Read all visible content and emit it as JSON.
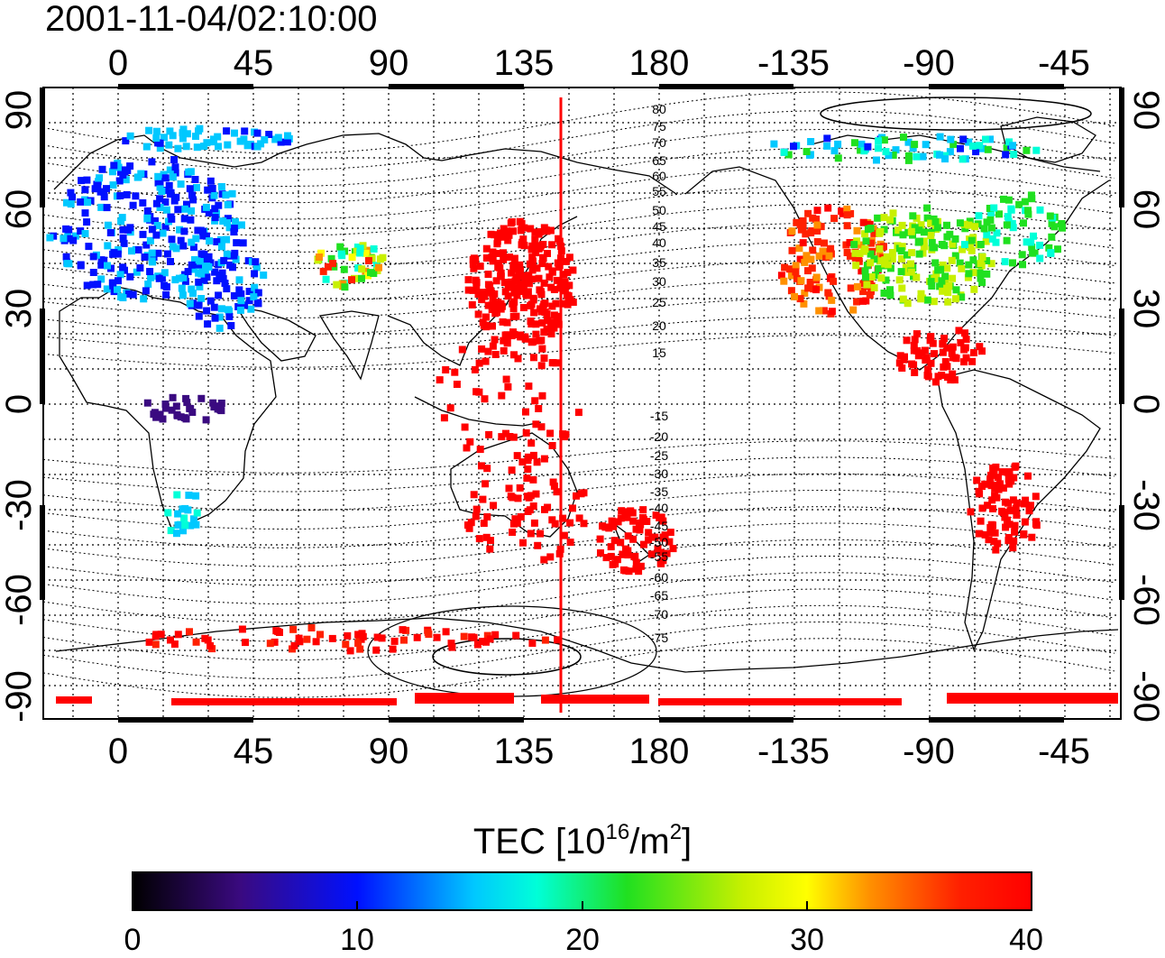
{
  "title": "2001-11-04/02:10:00",
  "top_ticks": [
    "0",
    "45",
    "90",
    "135",
    "180",
    "-135",
    "-90",
    "-45"
  ],
  "bottom_ticks": [
    "0",
    "45",
    "90",
    "135",
    "180",
    "-135",
    "-90",
    "-45"
  ],
  "left_ticks": [
    "90",
    "60",
    "30",
    "0",
    "-30",
    "-60",
    "-90"
  ],
  "right_ticks": [
    "90",
    "60",
    "30",
    "0",
    "-30",
    "-60",
    "-90"
  ],
  "contour_labels_north": [
    "80",
    "75",
    "70",
    "65",
    "60",
    "55",
    "50",
    "45",
    "40",
    "35",
    "30",
    "25",
    "20",
    "15"
  ],
  "contour_labels_south": [
    "-15",
    "-20",
    "-25",
    "-30",
    "-35",
    "-40",
    "-45",
    "-50",
    "-55",
    "-60",
    "-65",
    "-70",
    "-75"
  ],
  "colorbar": {
    "label_main": "TEC  [10",
    "label_sup1": "16",
    "label_mid": "/m",
    "label_sup2": "2",
    "label_end": "]",
    "ticks": [
      "0",
      "10",
      "20",
      "30",
      "40"
    ],
    "range": [
      0,
      40
    ]
  },
  "marker_longitude": 147,
  "colors": {
    "marker": "#ff0000",
    "frame": "#000000"
  }
}
